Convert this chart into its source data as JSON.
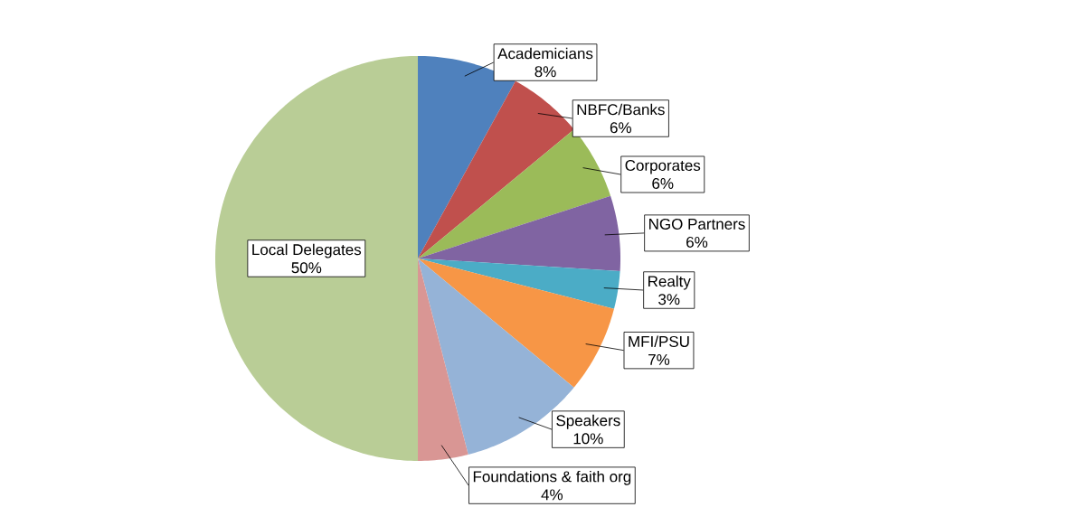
{
  "chart_data": {
    "type": "pie",
    "categories": [
      "Academicians",
      "NBFC/Banks",
      "Corporates",
      "NGO  Partners",
      "Realty",
      "MFI/PSU",
      "Speakers",
      "Foundations & faith org",
      "Local Delegates"
    ],
    "values": [
      8,
      6,
      6,
      6,
      3,
      7,
      10,
      4,
      50
    ],
    "value_labels": [
      "8%",
      "6%",
      "6%",
      "6%",
      "3%",
      "7%",
      "10%",
      "4%",
      "50%"
    ],
    "colors": [
      "#4f81bd",
      "#c0504d",
      "#9bbb59",
      "#8064a2",
      "#4bacc6",
      "#f79646",
      "#95b3d7",
      "#d99694",
      "#b9cd96"
    ]
  }
}
